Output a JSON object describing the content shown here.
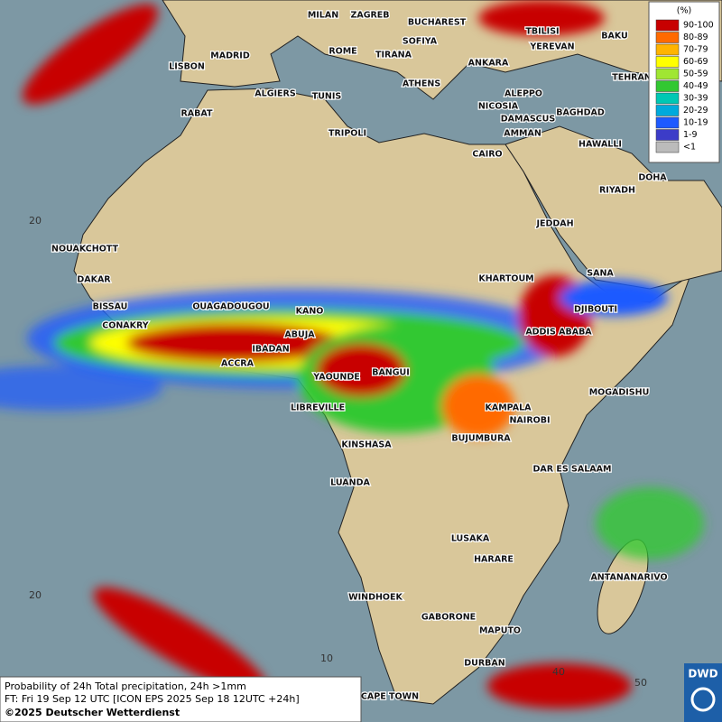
{
  "map": {
    "cities": [
      "MILAN",
      "ZAGREB",
      "BUCHAREST",
      "TBILISI",
      "BAKU",
      "YEREVAN",
      "MADRID",
      "ROME",
      "SOFIYA",
      "TIRANA",
      "ANKARA",
      "LISBON",
      "TEHRAN",
      "ATHENS",
      "ALGIERS",
      "TUNIS",
      "ALEPPO",
      "RABAT",
      "NICOSIA",
      "BAGHDAD",
      "TRIPOLI",
      "DAMASCUS",
      "AMMAN",
      "HAWALLI",
      "CAIRO",
      "DOHA",
      "RIYADH",
      "JEDDAH",
      "NOUAKCHOTT",
      "KHARTOUM",
      "SANA",
      "DAKAR",
      "BISSAU",
      "OUAGADOUGOU",
      "KANO",
      "DJIBOUTI",
      "CONAKRY",
      "ABUJA",
      "ADDIS ABABA",
      "IBADAN",
      "ACCRA",
      "BANGUI",
      "YAOUNDE",
      "MOGADISHU",
      "LIBREVILLE",
      "KAMPALA",
      "NAIROBI",
      "BUJUMBURA",
      "KINSHASA",
      "DAR ES SALAAM",
      "LUANDA",
      "LUSAKA",
      "HARARE",
      "ANTANANARIVO",
      "WINDHOEK",
      "GABORONE",
      "MAPUTO",
      "DURBAN",
      "CAPE TOWN"
    ],
    "grid_labels": [
      "20",
      "20",
      "10",
      "40",
      "50"
    ]
  },
  "legend": {
    "title": "(%)",
    "entries": [
      {
        "label": "90-100",
        "color": "#c80000"
      },
      {
        "label": "80-89",
        "color": "#ff6a00"
      },
      {
        "label": "70-79",
        "color": "#ffb400"
      },
      {
        "label": "60-69",
        "color": "#ffff00"
      },
      {
        "label": "50-59",
        "color": "#a0e632"
      },
      {
        "label": "40-49",
        "color": "#32c832"
      },
      {
        "label": "30-39",
        "color": "#00c8b4"
      },
      {
        "label": "20-29",
        "color": "#00aadc"
      },
      {
        "label": "10-19",
        "color": "#1e5aff"
      },
      {
        "label": "1-9",
        "color": "#3c3cc8"
      },
      {
        "label": "<1",
        "color": "#bbbbbb"
      }
    ]
  },
  "footer": {
    "line1": "Probability of 24h Total precipitation, 24h >1mm",
    "line2": "FT: Fri 19 Sep 12 UTC [ICON EPS 2025 Sep 18 12UTC +24h]",
    "line3": "©2025 Deutscher Wetterdienst"
  },
  "logo": "DWD"
}
